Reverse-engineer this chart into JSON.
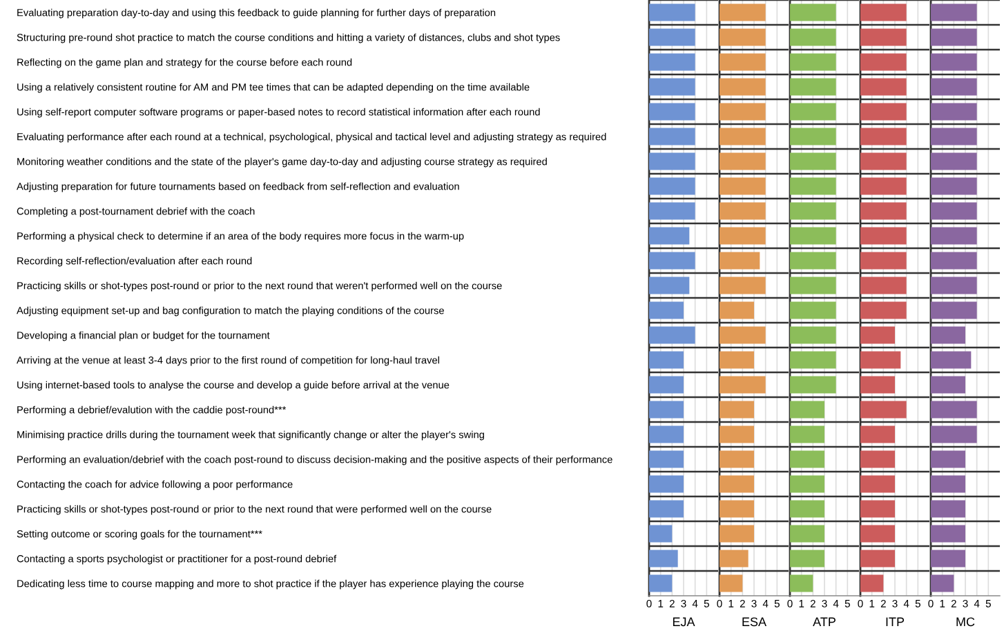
{
  "chart_data": [
    {
      "type": "bar",
      "orientation": "horizontal",
      "xlabel": "EJA",
      "color": "#6f93d3",
      "xlim": [
        0,
        6
      ],
      "xticks": [
        0,
        1,
        2,
        3,
        4,
        5
      ],
      "grid": "x",
      "categories": [
        "Evaluating preparation day-to-day and using this feedback to guide planning for further days of preparation",
        "Structuring pre-round shot practice to match the course conditions and hitting a variety of distances, clubs and shot types",
        "Reflecting on the game plan and strategy for the course before each round",
        "Using a relatively consistent routine for AM and PM tee times that can be adapted depending on the time available",
        "Using self-report computer software programs or paper-based notes to record statistical information after each round",
        "Evaluating performance after each round at a technical, psychological, physical and tactical level and adjusting strategy as required",
        "Monitoring weather conditions and the state of the player's game day-to-day and adjusting course strategy as required",
        "Adjusting preparation for future tournaments based on feedback from self-reflection and evaluation",
        "Completing a post-tournament debrief with the coach",
        "Performing a physical check to determine if an area of the body requires more focus in the warm-up",
        "Recording self-reflection/evaluation after each round",
        "Practicing skills or shot-types post-round or prior to the next round that weren't performed well on the course",
        "Adjusting equipment set-up and bag configuration to match the playing conditions of the course",
        "Developing a financial plan or budget for the tournament",
        "Arriving at the venue at least 3-4 days prior to the first round of competition for long-haul travel",
        "Using internet-based tools to analyse the course and develop a guide before arrival at the venue",
        "Performing a debrief/evalution with the caddie post-round***",
        "Minimising practice drills during the tournament week that significantly change or alter the player's swing",
        "Performing an evaluation/debrief with the coach post-round to discuss decision-making and the positive aspects of their performance",
        "Contacting the coach for advice following a poor performance",
        "Practicing skills or shot-types post-round or prior to the next round that were performed well on the course",
        "Setting outcome or scoring goals for the tournament***",
        "Contacting a sports psychologist or practitioner for a post-round debrief",
        "Dedicating less time to course mapping and more to shot practice if the player has experience playing the course"
      ],
      "values": [
        4,
        4,
        4,
        4,
        4,
        4,
        4,
        4,
        4,
        3.5,
        4,
        3.5,
        3,
        4,
        3,
        3,
        3,
        3,
        3,
        3,
        3,
        2,
        2.5,
        2
      ]
    },
    {
      "type": "bar",
      "orientation": "horizontal",
      "xlabel": "ESA",
      "color": "#e19a56",
      "xlim": [
        0,
        6
      ],
      "xticks": [
        0,
        1,
        2,
        3,
        4,
        5
      ],
      "grid": "x",
      "tick_labels": "x",
      "categories": [
        null,
        null,
        null,
        null,
        null,
        null,
        null,
        null,
        null,
        null,
        null,
        null,
        null,
        null,
        null,
        null,
        null,
        null,
        null,
        null,
        null,
        null,
        null,
        null
      ],
      "values": [
        4,
        4,
        4,
        4,
        4,
        4,
        4,
        4,
        4,
        4,
        3.5,
        4,
        3,
        4,
        3,
        4,
        3,
        3,
        3,
        3,
        3,
        3,
        2.5,
        2
      ]
    },
    {
      "type": "bar",
      "orientation": "horizontal",
      "xlabel": "ATP",
      "color": "#8cbd5a",
      "xlim": [
        0,
        6
      ],
      "xticks": [
        0,
        1,
        2,
        3,
        4,
        5
      ],
      "grid": "x",
      "tick_labels": "x",
      "categories": [
        null,
        null,
        null,
        null,
        null,
        null,
        null,
        null,
        null,
        null,
        null,
        null,
        null,
        null,
        null,
        null,
        null,
        null,
        null,
        null,
        null,
        null,
        null,
        null
      ],
      "values": [
        4,
        4,
        4,
        4,
        4,
        4,
        4,
        4,
        4,
        4,
        4,
        4,
        4,
        4,
        4,
        4,
        3,
        3,
        3,
        3,
        3,
        3,
        3,
        2
      ]
    },
    {
      "type": "bar",
      "orientation": "horizontal",
      "xlabel": "ITP",
      "color": "#cc5c5c",
      "xlim": [
        0,
        6
      ],
      "xticks": [
        0,
        1,
        2,
        3,
        4,
        5
      ],
      "grid": "x",
      "tick_labels": "x",
      "categories": [
        null,
        null,
        null,
        null,
        null,
        null,
        null,
        null,
        null,
        null,
        null,
        null,
        null,
        null,
        null,
        null,
        null,
        null,
        null,
        null,
        null,
        null,
        null,
        null
      ],
      "values": [
        4,
        4,
        4,
        4,
        4,
        4,
        4,
        4,
        4,
        4,
        4,
        4,
        4,
        3,
        3.5,
        3,
        4,
        3,
        3,
        3,
        3,
        3,
        3,
        2
      ]
    },
    {
      "type": "bar",
      "orientation": "horizontal",
      "xlabel": "MC",
      "color": "#8a67a0",
      "xlim": [
        0,
        6
      ],
      "xticks": [
        0,
        1,
        2,
        3,
        4,
        5
      ],
      "grid": "x",
      "tick_labels": "x",
      "categories": [
        null,
        null,
        null,
        null,
        null,
        null,
        null,
        null,
        null,
        null,
        null,
        null,
        null,
        null,
        null,
        null,
        null,
        null,
        null,
        null,
        null,
        null,
        null,
        null
      ],
      "values": [
        4,
        4,
        4,
        4,
        4,
        4,
        4,
        4,
        4,
        4,
        4,
        4,
        4,
        3,
        3.5,
        3,
        4,
        4,
        3,
        3,
        3,
        3,
        3,
        2
      ]
    }
  ]
}
